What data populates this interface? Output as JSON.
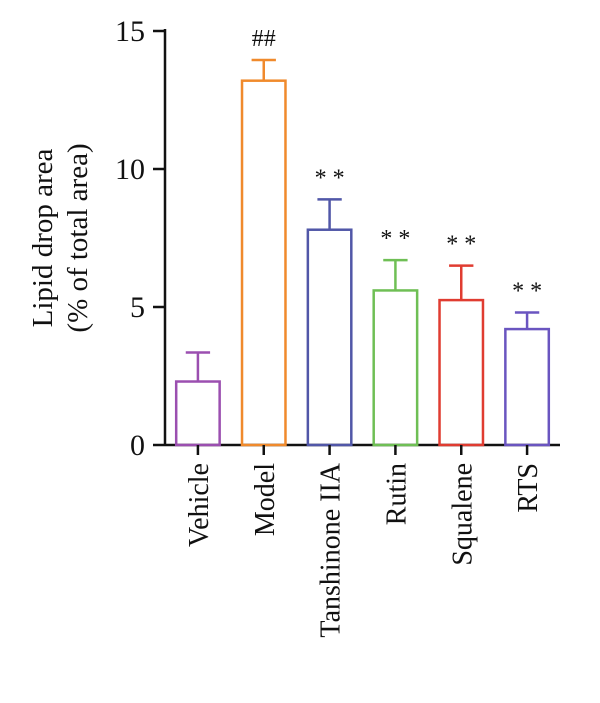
{
  "chart_data": {
    "type": "bar",
    "ylabel_line1": "Lipid drop area",
    "ylabel_line2": "(% of total area)",
    "xlabel": "",
    "ylim": [
      0,
      15
    ],
    "yticks": [
      0,
      5,
      10,
      15
    ],
    "grid": false,
    "categories": [
      "Vehicle",
      "Model",
      "Tanshinone IIA",
      "Rutin",
      "Squalene",
      "RTS"
    ],
    "values": [
      2.3,
      13.2,
      7.8,
      5.6,
      5.25,
      4.2
    ],
    "errors": [
      1.05,
      0.75,
      1.1,
      1.1,
      1.25,
      0.6
    ],
    "significance": [
      "",
      "##",
      "* *",
      "* *",
      "* *",
      "* *"
    ],
    "colors": [
      "#9b4fb0",
      "#f08a2c",
      "#5157a8",
      "#6fbf55",
      "#e03c31",
      "#6a55c0"
    ]
  }
}
